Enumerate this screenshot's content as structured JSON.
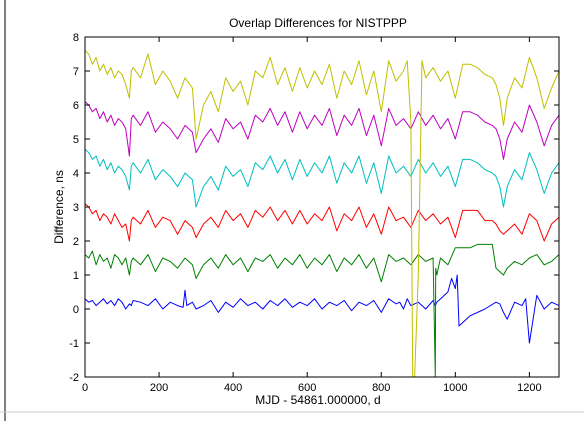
{
  "chart_data": {
    "type": "line",
    "title": "Overlap Differences for NISTPPP",
    "xlabel": "MJD - 54861.000000, d",
    "ylabel": "Difference, ns",
    "xlim": [
      0,
      1280
    ],
    "ylim": [
      -2,
      8
    ],
    "xticks": [
      0,
      200,
      400,
      600,
      800,
      1000,
      1200
    ],
    "yticks": [
      -2,
      -1,
      0,
      1,
      2,
      3,
      4,
      5,
      6,
      7,
      8
    ],
    "xtick_labels": [
      "0",
      "200",
      "400",
      "600",
      "800",
      "1000",
      "1200"
    ],
    "ytick_labels": [
      "-2",
      "-1",
      "0",
      "1",
      "2",
      "3",
      "4",
      "5",
      "6",
      "7",
      "8"
    ],
    "grid": false,
    "legend": "none",
    "series": [
      {
        "color": "#0000ff",
        "x": [
          0,
          10,
          20,
          30,
          40,
          50,
          60,
          70,
          80,
          90,
          100,
          110,
          120,
          125,
          130,
          150,
          170,
          190,
          210,
          230,
          250,
          265,
          270,
          275,
          290,
          300,
          320,
          340,
          360,
          380,
          400,
          420,
          440,
          460,
          480,
          500,
          520,
          540,
          560,
          580,
          600,
          620,
          640,
          660,
          680,
          700,
          720,
          740,
          760,
          780,
          800,
          820,
          840,
          850,
          860,
          870,
          880,
          900,
          920,
          940,
          946,
          950,
          980,
          990,
          1000,
          1005,
          1010,
          1040,
          1080,
          1110,
          1120,
          1130,
          1140,
          1160,
          1180,
          1190,
          1200,
          1210,
          1220,
          1240,
          1260,
          1280
        ],
        "values": [
          0.3,
          0.2,
          0.25,
          0.1,
          0.2,
          0.3,
          0.15,
          0.25,
          0.1,
          0.3,
          0.2,
          0.0,
          0.15,
          0.1,
          0.25,
          0.2,
          0.1,
          0.3,
          0.0,
          0.2,
          0.1,
          0.05,
          0.55,
          0.1,
          0.2,
          0.0,
          0.1,
          0.25,
          -0.1,
          0.2,
          0.05,
          0.3,
          0.1,
          0.2,
          0.0,
          0.25,
          0.1,
          0.3,
          0.05,
          0.2,
          0.1,
          0.3,
          0.0,
          0.2,
          0.1,
          0.25,
          -0.05,
          0.2,
          0.1,
          0.25,
          -0.1,
          0.3,
          0.15,
          0.2,
          0.0,
          0.3,
          0.1,
          0.2,
          0.0,
          0.25,
          0.1,
          0.2,
          0.5,
          0.9,
          0.6,
          1.0,
          -0.5,
          -0.2,
          0.0,
          0.2,
          0.15,
          -0.1,
          -0.3,
          0.2,
          0.1,
          0.3,
          -1.0,
          -0.3,
          0.4,
          0.0,
          0.2,
          0.1
        ]
      },
      {
        "color": "#008000",
        "x": [
          0,
          10,
          20,
          30,
          40,
          50,
          60,
          70,
          80,
          90,
          100,
          110,
          120,
          125,
          130,
          150,
          170,
          190,
          210,
          230,
          250,
          270,
          290,
          300,
          320,
          340,
          360,
          380,
          400,
          420,
          440,
          460,
          480,
          500,
          520,
          540,
          560,
          580,
          600,
          620,
          640,
          660,
          680,
          700,
          720,
          740,
          760,
          780,
          800,
          820,
          840,
          860,
          880,
          900,
          920,
          940,
          946,
          947,
          950,
          960,
          980,
          1000,
          1020,
          1040,
          1060,
          1080,
          1100,
          1110,
          1120,
          1130,
          1140,
          1160,
          1180,
          1200,
          1220,
          1240,
          1260,
          1280
        ],
        "values": [
          1.6,
          1.5,
          1.7,
          1.3,
          1.6,
          1.4,
          1.5,
          1.2,
          1.6,
          1.5,
          1.3,
          1.5,
          1.0,
          1.4,
          1.5,
          1.3,
          1.6,
          1.1,
          1.5,
          1.4,
          1.2,
          1.5,
          1.3,
          0.9,
          1.3,
          1.5,
          1.2,
          1.6,
          1.3,
          1.5,
          1.1,
          1.5,
          1.4,
          1.6,
          1.2,
          1.5,
          1.3,
          1.6,
          1.2,
          1.5,
          1.3,
          1.6,
          1.1,
          1.5,
          1.3,
          1.6,
          1.2,
          1.5,
          0.8,
          1.6,
          1.4,
          1.5,
          1.3,
          1.6,
          1.4,
          1.5,
          -2.0,
          1.2,
          1.0,
          1.5,
          1.3,
          1.8,
          1.8,
          1.8,
          1.9,
          1.9,
          1.9,
          1.2,
          1.1,
          1.0,
          1.2,
          1.4,
          1.3,
          1.5,
          1.6,
          1.3,
          1.4,
          1.6
        ]
      },
      {
        "color": "#ff0000",
        "x": [
          0,
          10,
          20,
          30,
          40,
          50,
          60,
          70,
          80,
          90,
          100,
          110,
          120,
          125,
          130,
          150,
          170,
          190,
          210,
          230,
          250,
          270,
          290,
          300,
          320,
          340,
          360,
          380,
          400,
          420,
          440,
          460,
          480,
          500,
          520,
          540,
          560,
          580,
          600,
          620,
          640,
          660,
          680,
          700,
          720,
          740,
          760,
          780,
          800,
          820,
          840,
          860,
          880,
          900,
          920,
          940,
          960,
          980,
          1000,
          1020,
          1040,
          1060,
          1080,
          1100,
          1110,
          1120,
          1130,
          1140,
          1160,
          1180,
          1200,
          1220,
          1240,
          1260,
          1280
        ],
        "values": [
          3.1,
          3.0,
          2.8,
          2.9,
          2.6,
          2.8,
          2.7,
          2.5,
          2.8,
          2.6,
          2.4,
          2.5,
          2.0,
          2.6,
          2.7,
          2.5,
          2.9,
          2.4,
          2.7,
          2.6,
          2.2,
          2.6,
          2.4,
          2.1,
          2.5,
          2.7,
          2.4,
          2.9,
          2.6,
          2.8,
          2.4,
          2.9,
          2.7,
          3.0,
          2.6,
          2.9,
          2.5,
          2.9,
          2.5,
          2.8,
          2.6,
          3.0,
          2.3,
          2.8,
          2.6,
          3.0,
          2.4,
          2.8,
          2.2,
          3.0,
          2.6,
          2.7,
          2.4,
          2.9,
          2.6,
          2.8,
          2.5,
          2.7,
          2.1,
          2.9,
          2.9,
          2.9,
          2.6,
          2.6,
          2.5,
          2.3,
          2.2,
          2.3,
          2.5,
          2.2,
          2.8,
          2.6,
          2.0,
          2.5,
          2.7
        ]
      },
      {
        "color": "#00bfbf",
        "x": [
          0,
          10,
          20,
          30,
          40,
          50,
          60,
          70,
          80,
          90,
          100,
          110,
          120,
          125,
          130,
          150,
          170,
          190,
          210,
          230,
          250,
          270,
          290,
          300,
          320,
          340,
          360,
          380,
          400,
          420,
          440,
          460,
          480,
          500,
          520,
          540,
          560,
          580,
          600,
          620,
          640,
          660,
          680,
          700,
          720,
          740,
          760,
          780,
          800,
          820,
          840,
          860,
          880,
          900,
          920,
          940,
          960,
          980,
          1000,
          1020,
          1040,
          1060,
          1080,
          1100,
          1110,
          1120,
          1130,
          1140,
          1160,
          1180,
          1200,
          1220,
          1240,
          1260,
          1280
        ],
        "values": [
          4.7,
          4.6,
          4.4,
          4.5,
          4.2,
          4.4,
          4.1,
          4.3,
          4.0,
          4.2,
          4.1,
          3.9,
          3.5,
          4.2,
          4.3,
          4.0,
          4.4,
          3.8,
          4.1,
          3.9,
          3.6,
          4.0,
          3.8,
          3.0,
          3.6,
          3.9,
          3.5,
          4.2,
          3.9,
          4.1,
          3.6,
          4.3,
          4.1,
          4.5,
          4.0,
          4.4,
          3.8,
          4.4,
          3.9,
          4.3,
          4.0,
          4.5,
          3.7,
          4.3,
          4.0,
          4.5,
          3.7,
          4.3,
          3.4,
          4.5,
          4.0,
          4.2,
          3.9,
          4.4,
          4.0,
          4.3,
          3.9,
          4.2,
          3.6,
          4.4,
          4.4,
          4.3,
          4.1,
          4.0,
          3.9,
          3.6,
          3.0,
          3.6,
          4.1,
          3.8,
          4.6,
          4.1,
          3.4,
          4.0,
          4.3
        ]
      },
      {
        "color": "#bf00bf",
        "x": [
          0,
          10,
          20,
          30,
          40,
          50,
          60,
          70,
          80,
          90,
          100,
          110,
          120,
          125,
          130,
          150,
          170,
          190,
          210,
          230,
          250,
          270,
          290,
          300,
          320,
          340,
          360,
          380,
          400,
          420,
          440,
          460,
          480,
          500,
          520,
          540,
          560,
          580,
          600,
          620,
          640,
          660,
          680,
          700,
          720,
          740,
          760,
          780,
          800,
          820,
          840,
          860,
          880,
          900,
          920,
          940,
          960,
          980,
          1000,
          1020,
          1040,
          1060,
          1080,
          1100,
          1110,
          1120,
          1130,
          1140,
          1160,
          1180,
          1200,
          1220,
          1240,
          1260,
          1280
        ],
        "values": [
          6.1,
          6.0,
          5.8,
          5.9,
          5.6,
          5.8,
          5.5,
          5.7,
          5.4,
          5.6,
          5.5,
          5.3,
          4.5,
          5.6,
          5.7,
          5.4,
          5.8,
          5.2,
          5.5,
          5.3,
          5.0,
          5.4,
          5.2,
          4.6,
          5.0,
          5.3,
          4.9,
          5.6,
          5.3,
          5.5,
          5.0,
          5.7,
          5.5,
          5.9,
          5.4,
          5.8,
          5.2,
          5.8,
          5.3,
          5.7,
          5.4,
          5.9,
          5.1,
          5.7,
          5.4,
          5.9,
          5.1,
          5.7,
          4.8,
          5.9,
          5.4,
          5.6,
          5.3,
          5.8,
          5.4,
          5.7,
          5.3,
          5.6,
          5.0,
          5.8,
          5.8,
          5.7,
          5.5,
          5.4,
          5.3,
          5.0,
          4.4,
          5.0,
          5.5,
          5.2,
          6.0,
          5.5,
          4.8,
          5.4,
          5.7
        ]
      },
      {
        "color": "#bfbf00",
        "x": [
          0,
          10,
          20,
          30,
          40,
          50,
          60,
          70,
          80,
          90,
          100,
          110,
          120,
          125,
          130,
          150,
          170,
          190,
          210,
          230,
          250,
          270,
          290,
          300,
          320,
          340,
          360,
          380,
          400,
          420,
          440,
          460,
          480,
          500,
          520,
          540,
          560,
          580,
          600,
          620,
          640,
          660,
          680,
          700,
          720,
          740,
          760,
          780,
          800,
          820,
          840,
          860,
          870,
          880,
          885,
          890,
          900,
          910,
          920,
          940,
          960,
          980,
          1000,
          1020,
          1040,
          1060,
          1080,
          1100,
          1110,
          1120,
          1130,
          1140,
          1160,
          1180,
          1200,
          1220,
          1240,
          1260,
          1280
        ],
        "values": [
          7.6,
          7.5,
          7.2,
          7.4,
          7.0,
          7.2,
          6.9,
          7.1,
          6.8,
          7.0,
          6.9,
          6.6,
          6.2,
          7.0,
          7.1,
          6.8,
          7.5,
          6.6,
          7.0,
          6.7,
          6.2,
          6.8,
          6.5,
          5.0,
          6.0,
          6.4,
          5.8,
          6.8,
          6.4,
          6.7,
          6.0,
          7.0,
          6.8,
          7.4,
          6.6,
          7.1,
          6.4,
          7.1,
          6.5,
          7.0,
          6.6,
          7.2,
          6.2,
          7.0,
          6.6,
          7.3,
          6.3,
          7.0,
          5.8,
          7.3,
          6.7,
          7.0,
          7.3,
          5.5,
          -2.0,
          -2.0,
          1.0,
          7.3,
          6.8,
          7.1,
          6.7,
          7.0,
          6.2,
          7.2,
          7.2,
          7.1,
          6.9,
          6.8,
          6.6,
          6.2,
          5.4,
          6.2,
          6.8,
          6.5,
          7.4,
          6.8,
          5.9,
          6.5,
          7.0
        ]
      }
    ]
  }
}
